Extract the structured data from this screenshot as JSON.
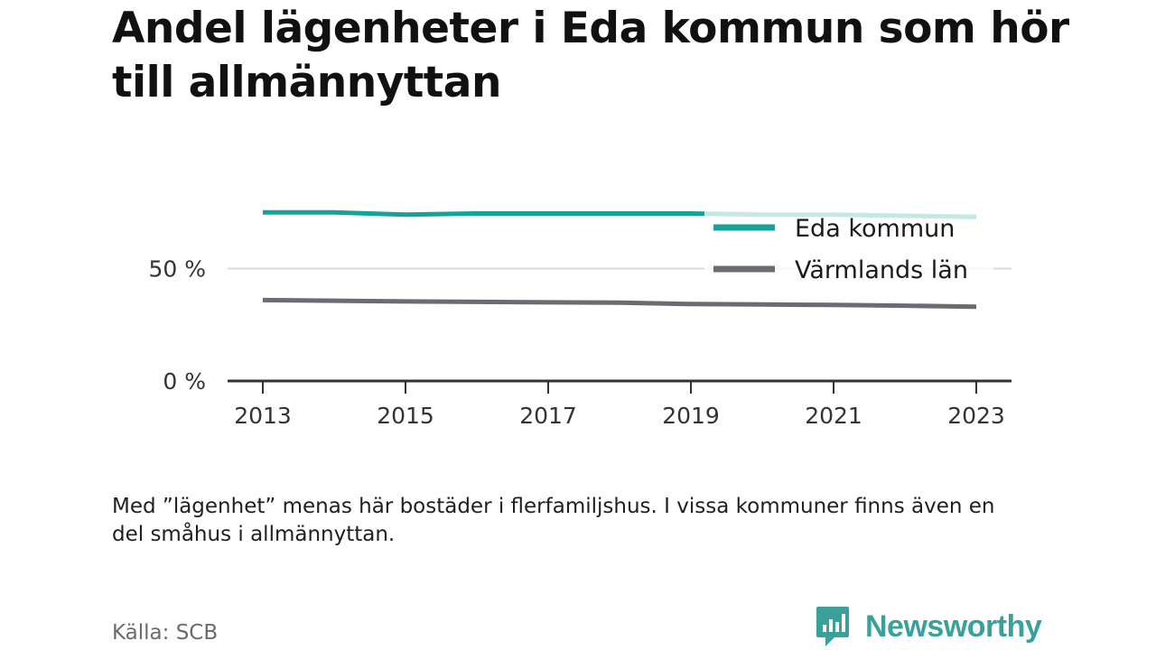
{
  "title": "Andel lägenheter i Eda kommun som hör till allmännyttan",
  "note": "Med ”lägenhet” menas här bostäder i flerfamiljshus. I vissa kommuner finns även en del småhus i allmännyttan.",
  "source": "Källa: SCB",
  "brand": {
    "name": "Newsworthy",
    "icon": "newsworthy-logo-icon",
    "color": "#3aa09a"
  },
  "chart_data": {
    "type": "line",
    "title": "Andel lägenheter i Eda kommun som hör till allmännyttan",
    "x": [
      2013,
      2014,
      2015,
      2016,
      2017,
      2018,
      2019,
      2020,
      2021,
      2022,
      2023
    ],
    "x_ticks": [
      "2013",
      "2015",
      "2017",
      "2019",
      "2021",
      "2023"
    ],
    "y_ticks": [
      "0 %",
      "50 %"
    ],
    "ylim": [
      0,
      100
    ],
    "grid": true,
    "legend_position": "top-right",
    "series": [
      {
        "name": "Eda kommun",
        "color": "#14a39a",
        "faded_color": "#c6e8e4",
        "values": [
          75,
          75,
          74,
          74.5,
          74.5,
          74.5,
          74.5,
          74,
          74,
          73.5,
          73
        ]
      },
      {
        "name": "Värmlands län",
        "color": "#6b6b72",
        "values": [
          36,
          35.7,
          35.4,
          35.2,
          35,
          34.8,
          34.2,
          34,
          33.8,
          33.5,
          33
        ]
      }
    ]
  }
}
